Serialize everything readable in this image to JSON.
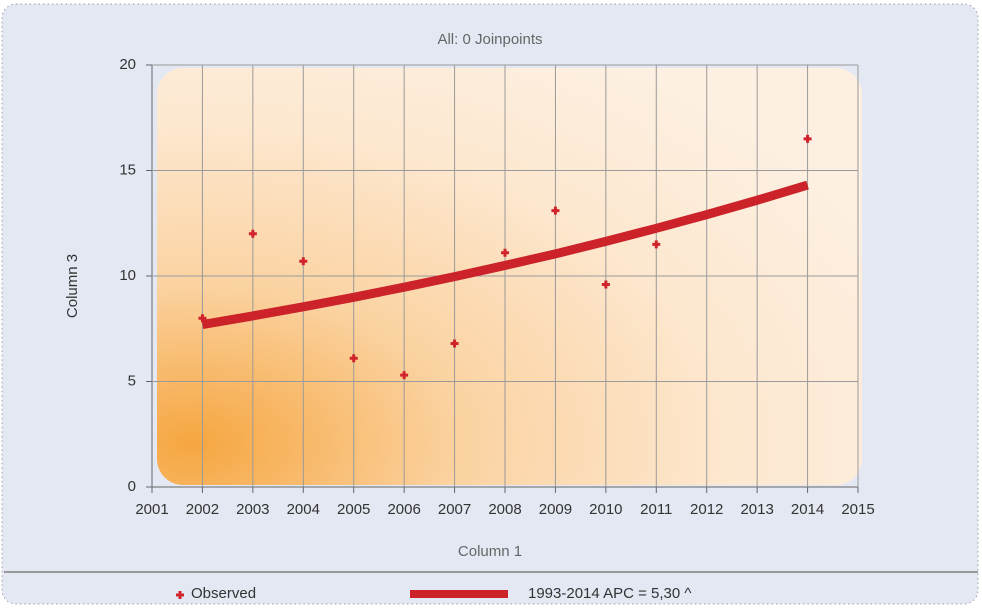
{
  "chart_data": {
    "type": "scatter",
    "title": "All: 0 Joinpoints",
    "x_label": "Column 1",
    "y_label": "Column 3",
    "xlim": [
      2001,
      2015
    ],
    "xticks": [
      2001,
      2002,
      2003,
      2004,
      2005,
      2006,
      2007,
      2008,
      2009,
      2010,
      2011,
      2012,
      2013,
      2014,
      2015
    ],
    "ylim": [
      0,
      20
    ],
    "yticks": [
      0,
      5,
      10,
      15,
      20
    ],
    "grid": true,
    "series": [
      {
        "name": "Observed",
        "type": "scatter",
        "color": "#d0232b",
        "x": [
          2002,
          2003,
          2004,
          2005,
          2006,
          2007,
          2008,
          2009,
          2010,
          2011,
          2014
        ],
        "values": [
          8.0,
          12.0,
          10.7,
          6.1,
          5.3,
          6.8,
          11.1,
          13.1,
          9.6,
          11.5,
          16.5
        ]
      },
      {
        "name": "1993-2014 APC = 5,30 ^",
        "type": "line",
        "color": "#cc2229",
        "x": [
          2002,
          2003,
          2004,
          2005,
          2006,
          2007,
          2008,
          2009,
          2010,
          2011,
          2012,
          2013,
          2014
        ],
        "values": [
          7.7,
          8.11,
          8.54,
          8.99,
          9.47,
          9.97,
          10.5,
          11.05,
          11.64,
          12.26,
          12.91,
          13.59,
          14.31
        ]
      }
    ]
  }
}
